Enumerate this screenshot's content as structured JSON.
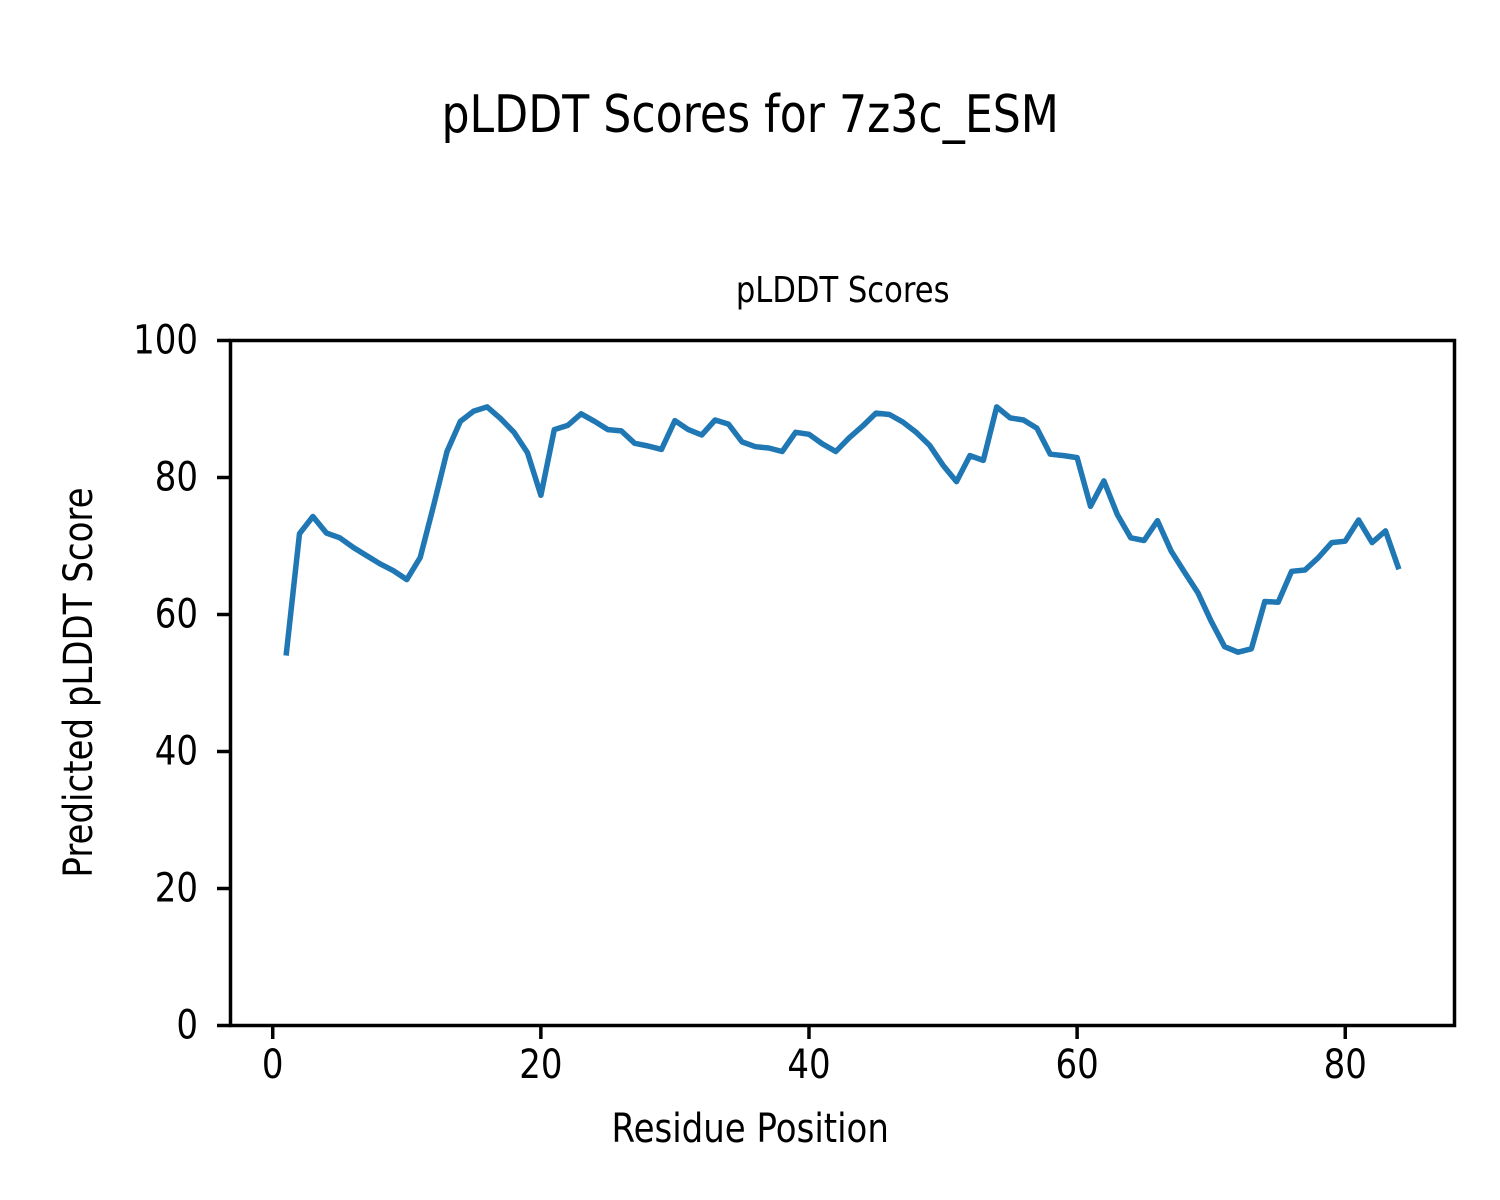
{
  "figure": {
    "title": "pLDDT Scores for 7z3c_ESM"
  },
  "chart_data": {
    "type": "line",
    "title": "pLDDT Scores",
    "xlabel": "Residue Position",
    "ylabel": "Predicted pLDDT Score",
    "series_name": "pLDDT Scores",
    "x": [
      1,
      2,
      3,
      4,
      5,
      6,
      7,
      8,
      9,
      10,
      11,
      12,
      13,
      14,
      15,
      16,
      17,
      18,
      19,
      20,
      21,
      22,
      23,
      24,
      25,
      26,
      27,
      28,
      29,
      30,
      31,
      32,
      33,
      34,
      35,
      36,
      37,
      38,
      39,
      40,
      41,
      42,
      43,
      44,
      45,
      46,
      47,
      48,
      49,
      50,
      51,
      52,
      53,
      54,
      55,
      56,
      57,
      58,
      59,
      60,
      61,
      62,
      63,
      64,
      65,
      66,
      67,
      68,
      69,
      70,
      71,
      72,
      73,
      74,
      75,
      76,
      77,
      78,
      79,
      80,
      81,
      82,
      83,
      84
    ],
    "values": [
      54.0,
      71.8,
      74.3,
      71.9,
      71.2,
      69.8,
      68.6,
      67.4,
      66.4,
      65.1,
      68.3,
      75.9,
      83.8,
      88.2,
      89.7,
      90.3,
      88.6,
      86.6,
      83.6,
      77.4,
      87.0,
      87.6,
      89.3,
      88.2,
      87.0,
      86.8,
      85.0,
      84.6,
      84.1,
      88.3,
      87.0,
      86.2,
      88.4,
      87.8,
      85.2,
      84.5,
      84.3,
      83.8,
      86.6,
      86.3,
      84.9,
      83.8,
      85.8,
      87.5,
      89.4,
      89.2,
      88.1,
      86.6,
      84.7,
      81.8,
      79.4,
      83.2,
      82.5,
      90.3,
      88.7,
      88.4,
      87.2,
      83.4,
      83.2,
      82.9,
      75.8,
      79.5,
      74.6,
      71.2,
      70.8,
      73.7,
      69.3,
      66.2,
      63.2,
      59.0,
      55.3,
      54.5,
      55.0,
      61.9,
      61.8,
      66.3,
      66.5,
      68.3,
      70.5,
      70.7,
      73.8,
      70.5,
      72.2,
      66.6
    ],
    "xlim": [
      -3.15,
      88.15
    ],
    "ylim": [
      0,
      100
    ],
    "xticks": [
      0,
      20,
      40,
      60,
      80
    ],
    "yticks": [
      0,
      20,
      40,
      60,
      80,
      100
    ],
    "grid": false,
    "legend": false,
    "line_color": "#1f77b4",
    "axis_color": "#000000",
    "background": "#ffffff",
    "line_width": 5.5
  }
}
